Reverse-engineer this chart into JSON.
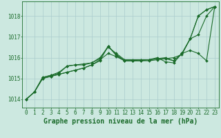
{
  "background_color": "#cce8e0",
  "grid_color": "#aacccc",
  "line_color": "#1a6b2a",
  "title": "Graphe pression niveau de la mer (hPa)",
  "xlim": [
    -0.5,
    23.5
  ],
  "ylim": [
    1013.6,
    1018.7
  ],
  "yticks": [
    1014,
    1015,
    1016,
    1017,
    1018
  ],
  "xticks": [
    0,
    1,
    2,
    3,
    4,
    5,
    6,
    7,
    8,
    9,
    10,
    11,
    12,
    13,
    14,
    15,
    16,
    17,
    18,
    19,
    20,
    21,
    22,
    23
  ],
  "series": [
    [
      1014.0,
      1014.35,
      1015.0,
      1015.1,
      1015.2,
      1015.3,
      1015.4,
      1015.5,
      1015.65,
      1015.85,
      1016.55,
      1016.15,
      1015.85,
      1015.85,
      1015.85,
      1015.85,
      1015.9,
      1015.95,
      1016.0,
      1016.15,
      1016.9,
      1017.1,
      1018.0,
      1018.45
    ],
    [
      1014.0,
      1014.35,
      1015.0,
      1015.1,
      1015.2,
      1015.3,
      1015.4,
      1015.5,
      1015.65,
      1015.9,
      1016.2,
      1016.05,
      1015.85,
      1015.85,
      1015.9,
      1015.9,
      1015.95,
      1016.0,
      1015.85,
      1016.2,
      1016.35,
      1016.2,
      1015.85,
      1018.45
    ],
    [
      1014.0,
      1014.35,
      1015.05,
      1015.15,
      1015.25,
      1015.6,
      1015.65,
      1015.65,
      1015.75,
      1016.0,
      1016.5,
      1016.2,
      1015.9,
      1015.9,
      1015.9,
      1015.9,
      1016.0,
      1015.8,
      1015.75,
      1016.2,
      1016.9,
      1018.0,
      1018.3,
      1018.45
    ],
    [
      1014.0,
      1014.35,
      1015.05,
      1015.15,
      1015.3,
      1015.6,
      1015.65,
      1015.7,
      1015.75,
      1015.95,
      1016.55,
      1016.1,
      1015.85,
      1015.85,
      1015.85,
      1015.9,
      1015.95,
      1015.95,
      1015.85,
      1016.2,
      1016.9,
      1018.0,
      1018.3,
      1018.45
    ]
  ],
  "title_fontsize": 7,
  "tick_fontsize": 5.5,
  "marker_size": 2.0,
  "linewidth": 0.8
}
